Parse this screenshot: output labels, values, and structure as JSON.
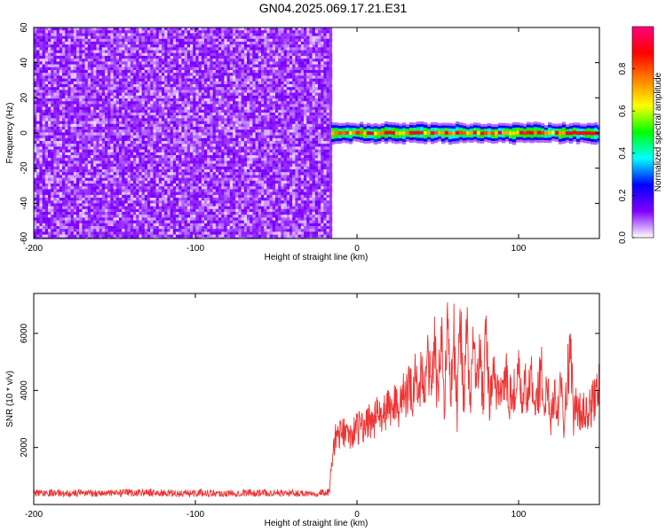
{
  "title": "GN04.2025.069.17.21.E31",
  "chart_data": [
    {
      "type": "heatmap",
      "xlabel": "Height of straight line (km)",
      "ylabel": "Frequency (Hz)",
      "xlim": [
        -200,
        150
      ],
      "ylim": [
        -60,
        60
      ],
      "xticks": [
        -200,
        -100,
        0,
        100
      ],
      "yticks": [
        -60,
        -40,
        -20,
        0,
        20,
        40,
        60
      ],
      "noise_region_x": [
        -200,
        -16
      ],
      "signal_region_x": [
        -16,
        150
      ],
      "signal_band_hz": [
        -3,
        3
      ],
      "colorbar": {
        "label": "Normalized spectral amplitude",
        "range": [
          0,
          1
        ],
        "ticks": [
          "0.0",
          "0.2",
          "0.4",
          "0.6",
          "0.8"
        ],
        "colors": [
          "#ffffff",
          "#8000ff",
          "#0000ff",
          "#00ffff",
          "#00ff00",
          "#ffff00",
          "#ff8000",
          "#ff0000",
          "#ff0080"
        ]
      }
    },
    {
      "type": "line",
      "xlabel": "Height of straight line (km)",
      "ylabel": "SNR (10 * v/v)",
      "xlim": [
        -200,
        150
      ],
      "ylim": [
        0,
        7400
      ],
      "xticks": [
        -200,
        -100,
        0,
        100
      ],
      "yticks": [
        2000,
        4000,
        6000
      ],
      "series": [
        {
          "color": "#ee3333",
          "x": [
            -200,
            -190,
            -180,
            -170,
            -160,
            -150,
            -140,
            -130,
            -120,
            -110,
            -100,
            -90,
            -80,
            -70,
            -60,
            -50,
            -40,
            -30,
            -20,
            -17,
            -16,
            -14,
            -12,
            -10,
            -8,
            -6,
            -4,
            -2,
            0,
            2,
            4,
            6,
            8,
            10,
            12,
            14,
            16,
            18,
            20,
            22,
            24,
            26,
            28,
            30,
            32,
            34,
            36,
            38,
            40,
            42,
            44,
            46,
            48,
            50,
            52,
            54,
            56,
            58,
            60,
            62,
            64,
            66,
            68,
            70,
            72,
            74,
            76,
            78,
            80,
            82,
            84,
            86,
            88,
            90,
            92,
            94,
            96,
            98,
            100,
            102,
            104,
            106,
            108,
            110,
            112,
            114,
            116,
            118,
            120,
            122,
            124,
            126,
            128,
            130,
            132,
            134,
            136,
            138,
            140,
            142,
            144,
            146,
            148,
            150
          ],
          "y": [
            400,
            420,
            380,
            410,
            400,
            390,
            410,
            420,
            400,
            380,
            410,
            400,
            390,
            420,
            400,
            410,
            390,
            400,
            420,
            410,
            1300,
            2200,
            2500,
            2400,
            2600,
            2500,
            2300,
            2700,
            2600,
            2800,
            2600,
            2900,
            3100,
            2700,
            3200,
            3000,
            3300,
            3100,
            3500,
            3300,
            3700,
            3400,
            3900,
            3600,
            4200,
            3800,
            4500,
            3900,
            4800,
            3700,
            5200,
            4000,
            5800,
            3500,
            6200,
            3600,
            6500,
            3800,
            5900,
            3200,
            6700,
            3700,
            6000,
            3400,
            6300,
            3900,
            5500,
            3600,
            6000,
            3300,
            4900,
            3700,
            4400,
            3900,
            4700,
            3500,
            4200,
            3800,
            4500,
            3600,
            4100,
            3900,
            4400,
            3400,
            3900,
            4700,
            3300,
            4300,
            3100,
            4000,
            3200,
            4600,
            3000,
            4200,
            5800,
            3000,
            3600,
            3200,
            3400,
            3100,
            3300,
            3600,
            3900,
            4100
          ]
        }
      ]
    }
  ]
}
